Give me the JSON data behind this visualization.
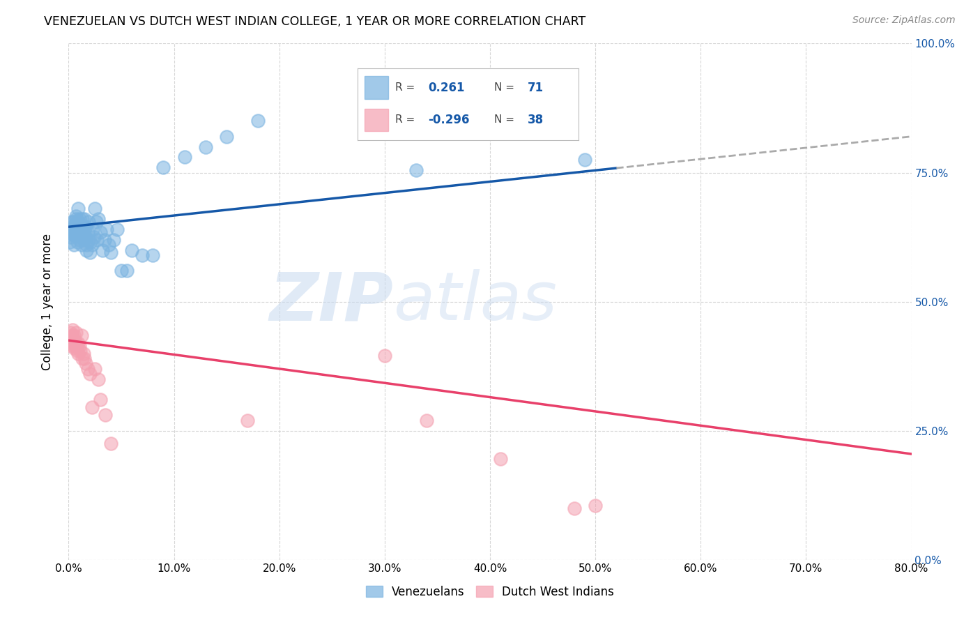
{
  "title": "VENEZUELAN VS DUTCH WEST INDIAN COLLEGE, 1 YEAR OR MORE CORRELATION CHART",
  "source": "Source: ZipAtlas.com",
  "ylabel_label": "College, 1 year or more",
  "legend_labels": [
    "Venezuelans",
    "Dutch West Indians"
  ],
  "R_blue": 0.261,
  "N_blue": 71,
  "R_pink": -0.296,
  "N_pink": 38,
  "blue_color": "#7ab3e0",
  "pink_color": "#f4a0b0",
  "line_blue": "#1558a8",
  "line_pink": "#e8406a",
  "line_dashed_color": "#aaaaaa",
  "xlim": [
    0.0,
    0.8
  ],
  "ylim": [
    0.0,
    1.0
  ],
  "figsize": [
    14.06,
    8.92
  ],
  "dpi": 100,
  "blue_line_x_solid_end": 0.52,
  "blue_line_y_at_0": 0.645,
  "blue_line_y_at_08": 0.82,
  "pink_line_y_at_0": 0.425,
  "pink_line_y_at_08": 0.205,
  "xticks": [
    0.0,
    0.1,
    0.2,
    0.3,
    0.4,
    0.5,
    0.6,
    0.7,
    0.8
  ],
  "yticks_right": [
    0.0,
    0.25,
    0.5,
    0.75,
    1.0
  ],
  "ytick_labels_right": [
    "0.0%",
    "25.0%",
    "50.0%",
    "75.0%",
    "100.0%"
  ],
  "xtick_labels": [
    "0.0%",
    "10.0%",
    "20.0%",
    "30.0%",
    "40.0%",
    "50.0%",
    "60.0%",
    "70.0%",
    "80.0%"
  ]
}
